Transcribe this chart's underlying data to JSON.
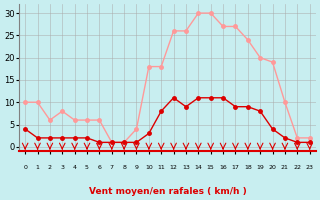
{
  "hours": [
    0,
    1,
    2,
    3,
    4,
    5,
    6,
    7,
    8,
    9,
    10,
    11,
    12,
    13,
    14,
    15,
    16,
    17,
    18,
    19,
    20,
    21,
    22,
    23
  ],
  "wind_avg": [
    4,
    2,
    2,
    2,
    2,
    2,
    1,
    1,
    1,
    1,
    3,
    8,
    11,
    9,
    11,
    11,
    11,
    9,
    9,
    8,
    4,
    2,
    1,
    1
  ],
  "wind_gust": [
    10,
    10,
    6,
    8,
    6,
    6,
    6,
    1,
    1,
    4,
    18,
    18,
    26,
    26,
    30,
    30,
    27,
    27,
    24,
    20,
    19,
    10,
    2,
    2
  ],
  "bg_color": "#c8eef0",
  "grid_color": "#aaaaaa",
  "avg_color": "#dd0000",
  "gust_color": "#ff9999",
  "xlabel": "Vent moyen/en rafales ( km/h )",
  "xlabel_color": "#dd0000",
  "yticks": [
    0,
    5,
    10,
    15,
    20,
    25,
    30
  ],
  "ylim": [
    -1,
    32
  ],
  "xlim": [
    -0.5,
    23.5
  ],
  "arrow_color": "#dd0000"
}
